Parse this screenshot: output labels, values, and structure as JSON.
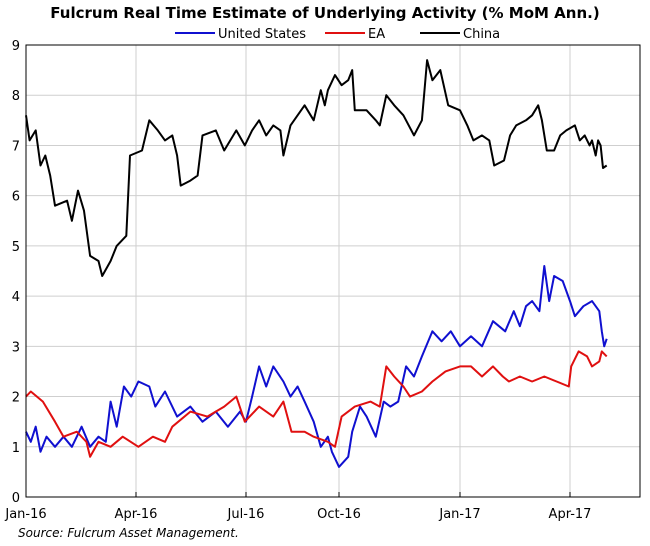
{
  "chart_data": {
    "type": "line",
    "title": "Fulcrum Real Time Estimate of Underlying Activity (% MoM Ann.)",
    "xlabel": "",
    "ylabel": "",
    "x_ticks": [
      "Jan-16",
      "Apr-16",
      "Jul-16",
      "Oct-16",
      "Jan-17",
      "Apr-17"
    ],
    "ylim": [
      0,
      9
    ],
    "y_ticks": [
      0,
      1,
      2,
      3,
      4,
      5,
      6,
      7,
      8,
      9
    ],
    "grid": true,
    "legend": "top",
    "source": "Source: Fulcrum Asset Management.",
    "series": [
      {
        "name": "United States",
        "color": "#1010d0",
        "points": [
          [
            "2016-01-01",
            1.3
          ],
          [
            "2016-01-05",
            1.1
          ],
          [
            "2016-01-09",
            1.4
          ],
          [
            "2016-01-13",
            0.9
          ],
          [
            "2016-01-18",
            1.2
          ],
          [
            "2016-01-25",
            1.0
          ],
          [
            "2016-02-01",
            1.2
          ],
          [
            "2016-02-08",
            1.0
          ],
          [
            "2016-02-16",
            1.4
          ],
          [
            "2016-02-23",
            1.0
          ],
          [
            "2016-03-01",
            1.2
          ],
          [
            "2016-03-07",
            1.1
          ],
          [
            "2016-03-11",
            1.9
          ],
          [
            "2016-03-16",
            1.4
          ],
          [
            "2016-03-22",
            2.2
          ],
          [
            "2016-03-28",
            2.0
          ],
          [
            "2016-04-03",
            2.3
          ],
          [
            "2016-04-12",
            2.2
          ],
          [
            "2016-04-17",
            1.8
          ],
          [
            "2016-04-25",
            2.1
          ],
          [
            "2016-05-05",
            1.6
          ],
          [
            "2016-05-16",
            1.8
          ],
          [
            "2016-05-26",
            1.5
          ],
          [
            "2016-06-06",
            1.7
          ],
          [
            "2016-06-16",
            1.4
          ],
          [
            "2016-06-26",
            1.7
          ],
          [
            "2016-07-01",
            1.5
          ],
          [
            "2016-07-07",
            2.0
          ],
          [
            "2016-07-14",
            2.6
          ],
          [
            "2016-07-21",
            2.2
          ],
          [
            "2016-07-28",
            2.6
          ],
          [
            "2016-08-07",
            2.3
          ],
          [
            "2016-08-14",
            2.0
          ],
          [
            "2016-08-21",
            2.2
          ],
          [
            "2016-08-28",
            1.9
          ],
          [
            "2016-09-06",
            1.5
          ],
          [
            "2016-09-13",
            1.0
          ],
          [
            "2016-09-20",
            1.2
          ],
          [
            "2016-09-24",
            0.9
          ],
          [
            "2016-10-01",
            0.6
          ],
          [
            "2016-10-08",
            0.8
          ],
          [
            "2016-10-11",
            1.3
          ],
          [
            "2016-10-17",
            1.8
          ],
          [
            "2016-10-22",
            1.6
          ],
          [
            "2016-10-29",
            1.2
          ],
          [
            "2016-11-04",
            1.9
          ],
          [
            "2016-11-09",
            1.8
          ],
          [
            "2016-11-15",
            1.9
          ],
          [
            "2016-11-21",
            2.6
          ],
          [
            "2016-11-27",
            2.4
          ],
          [
            "2016-12-03",
            2.8
          ],
          [
            "2016-12-11",
            3.3
          ],
          [
            "2016-12-18",
            3.1
          ],
          [
            "2016-12-25",
            3.3
          ],
          [
            "2017-01-01",
            3.0
          ],
          [
            "2017-01-10",
            3.2
          ],
          [
            "2017-01-19",
            3.0
          ],
          [
            "2017-01-28",
            3.5
          ],
          [
            "2017-02-07",
            3.3
          ],
          [
            "2017-02-14",
            3.7
          ],
          [
            "2017-02-19",
            3.4
          ],
          [
            "2017-02-24",
            3.8
          ],
          [
            "2017-03-01",
            3.9
          ],
          [
            "2017-03-07",
            3.7
          ],
          [
            "2017-03-11",
            4.6
          ],
          [
            "2017-03-15",
            3.9
          ],
          [
            "2017-03-19",
            4.4
          ],
          [
            "2017-03-26",
            4.3
          ],
          [
            "2017-04-01",
            3.9
          ],
          [
            "2017-04-05",
            3.6
          ],
          [
            "2017-04-12",
            3.8
          ],
          [
            "2017-04-19",
            3.9
          ],
          [
            "2017-04-25",
            3.7
          ],
          [
            "2017-04-27",
            3.3
          ],
          [
            "2017-04-29",
            3.0
          ],
          [
            "2017-05-01",
            3.15
          ]
        ]
      },
      {
        "name": "EA",
        "color": "#e01010",
        "points": [
          [
            "2016-01-01",
            2.0
          ],
          [
            "2016-01-05",
            2.1
          ],
          [
            "2016-01-15",
            1.9
          ],
          [
            "2016-01-25",
            1.5
          ],
          [
            "2016-02-01",
            1.2
          ],
          [
            "2016-02-12",
            1.3
          ],
          [
            "2016-02-20",
            1.1
          ],
          [
            "2016-02-23",
            0.8
          ],
          [
            "2016-03-01",
            1.1
          ],
          [
            "2016-03-11",
            1.0
          ],
          [
            "2016-03-21",
            1.2
          ],
          [
            "2016-04-03",
            1.0
          ],
          [
            "2016-04-15",
            1.2
          ],
          [
            "2016-04-25",
            1.1
          ],
          [
            "2016-05-01",
            1.4
          ],
          [
            "2016-05-16",
            1.7
          ],
          [
            "2016-05-30",
            1.6
          ],
          [
            "2016-06-13",
            1.8
          ],
          [
            "2016-06-23",
            2.0
          ],
          [
            "2016-06-30",
            1.5
          ],
          [
            "2016-07-14",
            1.8
          ],
          [
            "2016-07-28",
            1.6
          ],
          [
            "2016-08-07",
            1.9
          ],
          [
            "2016-08-15",
            1.3
          ],
          [
            "2016-08-28",
            1.3
          ],
          [
            "2016-09-06",
            1.2
          ],
          [
            "2016-09-20",
            1.1
          ],
          [
            "2016-09-27",
            1.0
          ],
          [
            "2016-10-03",
            1.6
          ],
          [
            "2016-10-13",
            1.8
          ],
          [
            "2016-10-25",
            1.9
          ],
          [
            "2016-11-01",
            1.8
          ],
          [
            "2016-11-06",
            2.6
          ],
          [
            "2016-11-12",
            2.4
          ],
          [
            "2016-11-19",
            2.2
          ],
          [
            "2016-11-24",
            2.0
          ],
          [
            "2016-12-03",
            2.1
          ],
          [
            "2016-12-11",
            2.3
          ],
          [
            "2016-12-21",
            2.5
          ],
          [
            "2017-01-01",
            2.6
          ],
          [
            "2017-01-10",
            2.6
          ],
          [
            "2017-01-19",
            2.4
          ],
          [
            "2017-01-28",
            2.6
          ],
          [
            "2017-02-05",
            2.4
          ],
          [
            "2017-02-10",
            2.3
          ],
          [
            "2017-02-19",
            2.4
          ],
          [
            "2017-03-01",
            2.3
          ],
          [
            "2017-03-11",
            2.4
          ],
          [
            "2017-03-21",
            2.3
          ],
          [
            "2017-03-31",
            2.2
          ],
          [
            "2017-04-02",
            2.6
          ],
          [
            "2017-04-08",
            2.9
          ],
          [
            "2017-04-15",
            2.8
          ],
          [
            "2017-04-19",
            2.6
          ],
          [
            "2017-04-25",
            2.7
          ],
          [
            "2017-04-27",
            2.9
          ],
          [
            "2017-05-01",
            2.8
          ]
        ]
      },
      {
        "name": "China",
        "color": "#000000",
        "points": [
          [
            "2016-01-01",
            7.6
          ],
          [
            "2016-01-04",
            7.1
          ],
          [
            "2016-01-09",
            7.3
          ],
          [
            "2016-01-13",
            6.6
          ],
          [
            "2016-01-17",
            6.8
          ],
          [
            "2016-01-21",
            6.4
          ],
          [
            "2016-01-25",
            5.8
          ],
          [
            "2016-02-04",
            5.9
          ],
          [
            "2016-02-08",
            5.5
          ],
          [
            "2016-02-13",
            6.1
          ],
          [
            "2016-02-18",
            5.7
          ],
          [
            "2016-02-23",
            4.8
          ],
          [
            "2016-03-01",
            4.7
          ],
          [
            "2016-03-04",
            4.4
          ],
          [
            "2016-03-11",
            4.7
          ],
          [
            "2016-03-16",
            5.0
          ],
          [
            "2016-03-24",
            5.2
          ],
          [
            "2016-03-27",
            6.8
          ],
          [
            "2016-04-06",
            6.9
          ],
          [
            "2016-04-12",
            7.5
          ],
          [
            "2016-04-19",
            7.3
          ],
          [
            "2016-04-25",
            7.1
          ],
          [
            "2016-05-01",
            7.2
          ],
          [
            "2016-05-05",
            6.8
          ],
          [
            "2016-05-08",
            6.2
          ],
          [
            "2016-05-16",
            6.3
          ],
          [
            "2016-05-22",
            6.4
          ],
          [
            "2016-05-26",
            7.2
          ],
          [
            "2016-06-06",
            7.3
          ],
          [
            "2016-06-13",
            6.9
          ],
          [
            "2016-06-23",
            7.3
          ],
          [
            "2016-06-30",
            7.0
          ],
          [
            "2016-07-07",
            7.3
          ],
          [
            "2016-07-14",
            7.5
          ],
          [
            "2016-07-21",
            7.2
          ],
          [
            "2016-07-28",
            7.4
          ],
          [
            "2016-08-04",
            7.3
          ],
          [
            "2016-08-07",
            6.8
          ],
          [
            "2016-08-14",
            7.4
          ],
          [
            "2016-08-21",
            7.6
          ],
          [
            "2016-08-28",
            7.8
          ],
          [
            "2016-09-06",
            7.5
          ],
          [
            "2016-09-13",
            8.1
          ],
          [
            "2016-09-17",
            7.8
          ],
          [
            "2016-09-20",
            8.1
          ],
          [
            "2016-09-27",
            8.4
          ],
          [
            "2016-10-03",
            8.2
          ],
          [
            "2016-10-08",
            8.3
          ],
          [
            "2016-10-11",
            8.5
          ],
          [
            "2016-10-13",
            7.7
          ],
          [
            "2016-10-22",
            7.7
          ],
          [
            "2016-10-29",
            7.5
          ],
          [
            "2016-11-01",
            7.4
          ],
          [
            "2016-11-06",
            8.0
          ],
          [
            "2016-11-12",
            7.8
          ],
          [
            "2016-11-19",
            7.6
          ],
          [
            "2016-11-27",
            7.2
          ],
          [
            "2016-12-03",
            7.5
          ],
          [
            "2016-12-07",
            8.7
          ],
          [
            "2016-12-11",
            8.3
          ],
          [
            "2016-12-17",
            8.5
          ],
          [
            "2016-12-23",
            7.8
          ],
          [
            "2017-01-01",
            7.7
          ],
          [
            "2017-01-07",
            7.4
          ],
          [
            "2017-01-12",
            7.1
          ],
          [
            "2017-01-19",
            7.2
          ],
          [
            "2017-01-25",
            7.1
          ],
          [
            "2017-01-29",
            6.6
          ],
          [
            "2017-02-06",
            6.7
          ],
          [
            "2017-02-11",
            7.2
          ],
          [
            "2017-02-16",
            7.4
          ],
          [
            "2017-02-24",
            7.5
          ],
          [
            "2017-03-01",
            7.6
          ],
          [
            "2017-03-06",
            7.8
          ],
          [
            "2017-03-09",
            7.5
          ],
          [
            "2017-03-13",
            6.9
          ],
          [
            "2017-03-19",
            6.9
          ],
          [
            "2017-03-24",
            7.2
          ],
          [
            "2017-03-29",
            7.3
          ],
          [
            "2017-04-05",
            7.4
          ],
          [
            "2017-04-09",
            7.1
          ],
          [
            "2017-04-13",
            7.2
          ],
          [
            "2017-04-17",
            7.0
          ],
          [
            "2017-04-19",
            7.1
          ],
          [
            "2017-04-22",
            6.8
          ],
          [
            "2017-04-24",
            7.1
          ],
          [
            "2017-04-26",
            7.0
          ],
          [
            "2017-04-28",
            6.55
          ],
          [
            "2017-05-01",
            6.6
          ]
        ]
      }
    ]
  }
}
